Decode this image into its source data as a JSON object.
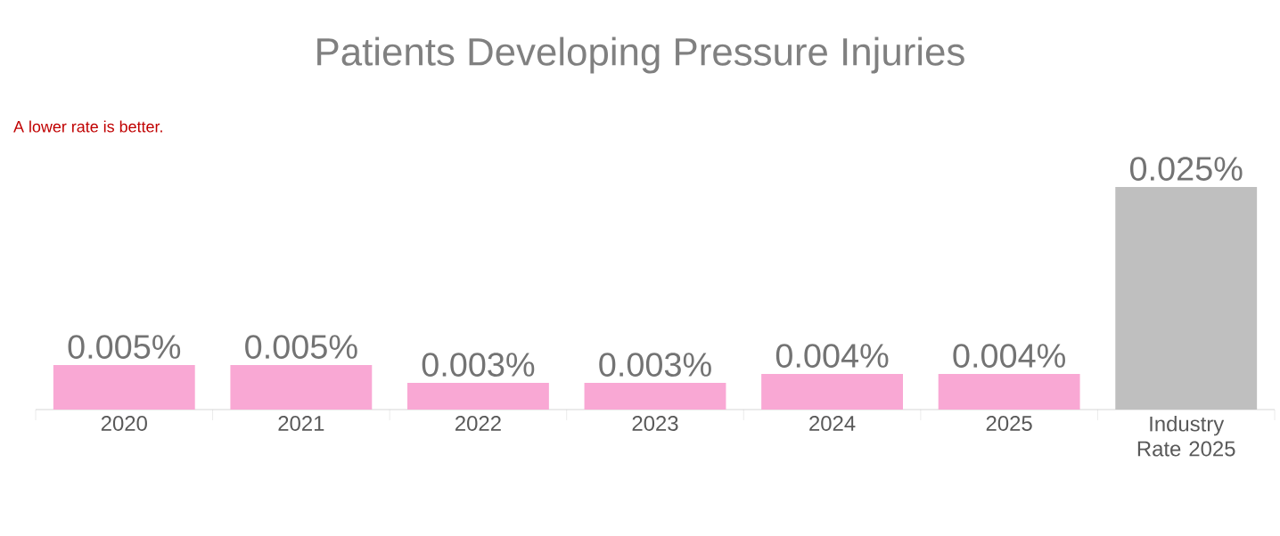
{
  "chart_data": {
    "type": "bar",
    "title": "Patients Developing Pressure Injuries",
    "annotations": [
      "A lower rate is better."
    ],
    "categories": [
      "2020",
      "2021",
      "2022",
      "2023",
      "2024",
      "2025",
      "Industry Rate 2025"
    ],
    "values": [
      0.005,
      0.005,
      0.003,
      0.003,
      0.004,
      0.004,
      0.025
    ],
    "colors": [
      "#f9a8d4",
      "#f9a8d4",
      "#f9a8d4",
      "#f9a8d4",
      "#f9a8d4",
      "#f9a8d4",
      "#bfbfbf"
    ],
    "value_labels": [
      "0.005%",
      "0.005%",
      "0.003%",
      "0.003%",
      "0.004%",
      "0.004%",
      "0.025%"
    ]
  }
}
